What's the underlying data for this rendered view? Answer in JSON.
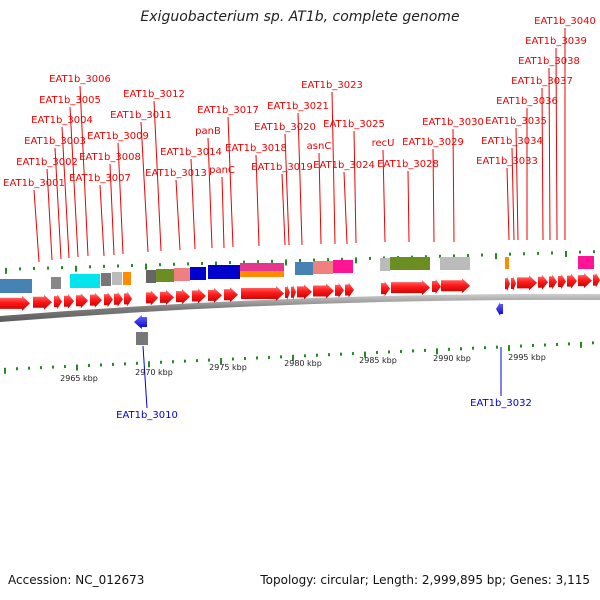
{
  "title": "Exiguobacterium sp. AT1b, complete genome",
  "footer": {
    "accession": "Accession: NC_012673",
    "topology": "Topology: circular; Length: 2,999,895 bp; Genes: 3,115"
  },
  "ruler_labels": [
    "2965 kbp",
    "2970 kbp",
    "2975 kbp",
    "2980 kbp",
    "2985 kbp",
    "2990 kbp",
    "2995 kbp"
  ],
  "forward_gene_labels": [
    "EAT1b_3001",
    "EAT1b_3002",
    "EAT1b_3003",
    "EAT1b_3004",
    "EAT1b_3005",
    "EAT1b_3006",
    "EAT1b_3007",
    "EAT1b_3008",
    "EAT1b_3009",
    "EAT1b_3011",
    "EAT1b_3012",
    "EAT1b_3013",
    "EAT1b_3014",
    "panB",
    "panC",
    "EAT1b_3017",
    "EAT1b_3018",
    "EAT1b_3019",
    "EAT1b_3020",
    "EAT1b_3021",
    "asnC",
    "EAT1b_3023",
    "EAT1b_3024",
    "EAT1b_3025",
    "recU",
    "EAT1b_3028",
    "EAT1b_3029",
    "EAT1b_3030",
    "EAT1b_3033",
    "EAT1b_3034",
    "EAT1b_3035",
    "EAT1b_3036",
    "EAT1b_3037",
    "EAT1b_3038",
    "EAT1b_3039",
    "EAT1b_3040"
  ],
  "reverse_gene_labels": [
    "EAT1b_3010",
    "EAT1b_3032"
  ],
  "colors": {
    "forward_gene": "#ee0000",
    "reverse_gene": "#0000dd",
    "tick": "#228b22",
    "backbone": "#888888"
  }
}
